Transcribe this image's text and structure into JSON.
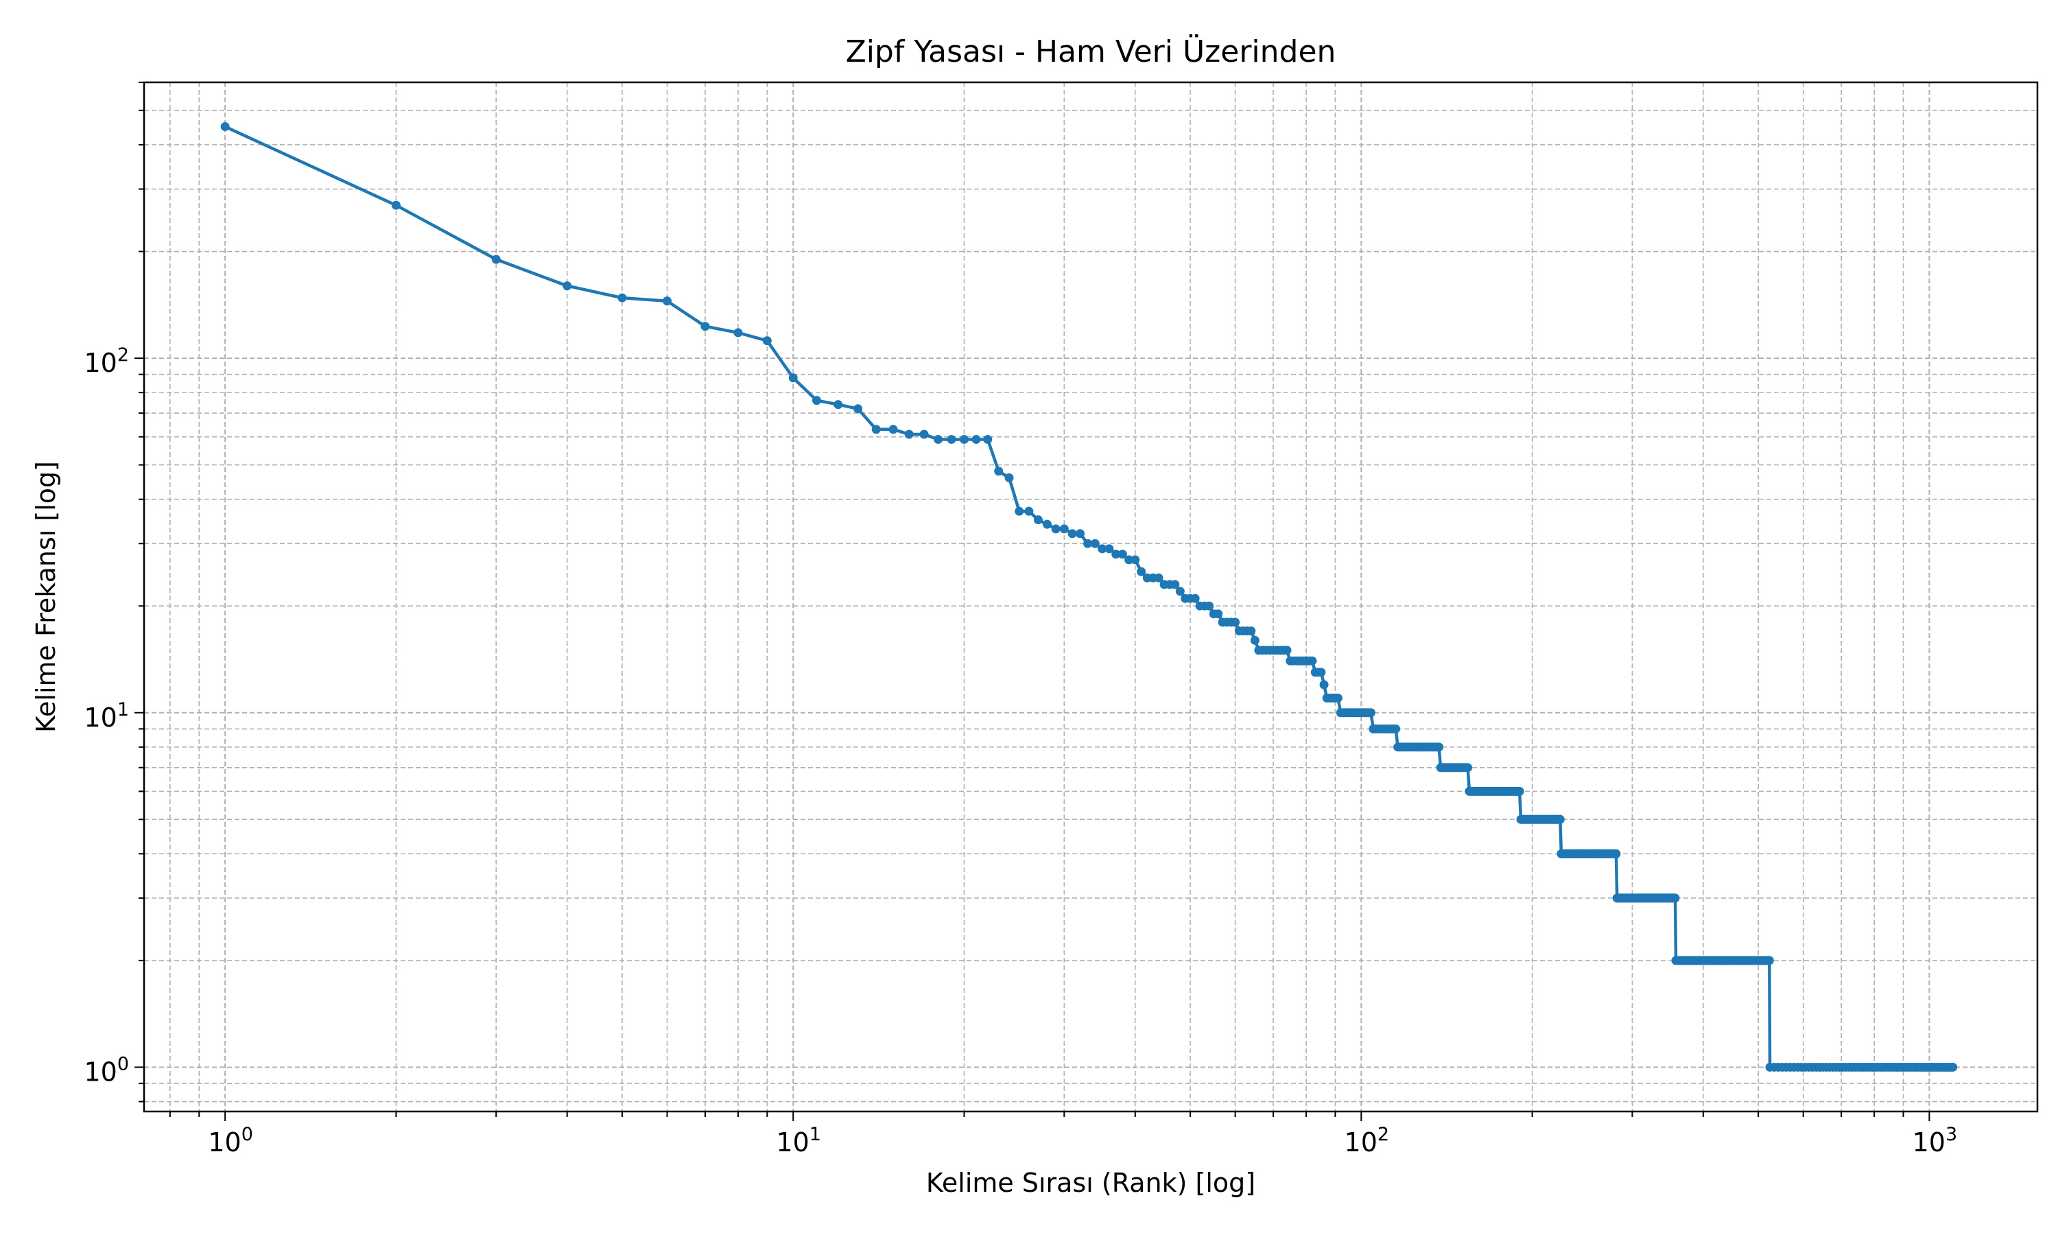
{
  "chart_data": {
    "type": "line",
    "title": "Zipf Yasası - Ham Veri Üzerinden",
    "xlabel": "Kelime Sırası (Rank) [log]",
    "ylabel": "Kelime Frekansı [log]",
    "xscale": "log",
    "yscale": "log",
    "xlim": [
      0.72,
      1550
    ],
    "ylim": [
      0.75,
      600
    ],
    "grid": "major and minor, dashed",
    "legend": "none",
    "marker": "circle",
    "line_color": "#1f77b4",
    "x_ticks": [
      {
        "base": "10",
        "exp": "0",
        "value": 1
      },
      {
        "base": "10",
        "exp": "1",
        "value": 10
      },
      {
        "base": "10",
        "exp": "2",
        "value": 100
      },
      {
        "base": "10",
        "exp": "3",
        "value": 1000
      }
    ],
    "y_ticks": [
      {
        "base": "10",
        "exp": "0",
        "value": 1
      },
      {
        "base": "10",
        "exp": "1",
        "value": 10
      },
      {
        "base": "10",
        "exp": "2",
        "value": 100
      }
    ],
    "series": [
      {
        "points": [
          [
            1,
            450
          ],
          [
            2,
            270
          ],
          [
            3,
            190
          ],
          [
            4,
            160
          ],
          [
            5,
            148
          ],
          [
            6,
            145
          ],
          [
            7,
            123
          ],
          [
            8,
            118
          ],
          [
            9,
            112
          ],
          [
            10,
            88
          ],
          [
            11,
            76
          ],
          [
            12,
            74
          ],
          [
            13,
            72
          ],
          [
            14,
            63
          ],
          [
            15,
            63
          ],
          [
            16,
            61
          ],
          [
            17,
            61
          ],
          [
            18,
            59
          ],
          [
            19,
            59
          ],
          [
            20,
            59
          ],
          [
            21,
            59
          ],
          [
            22,
            59
          ],
          [
            23,
            48
          ],
          [
            24,
            46
          ],
          [
            25,
            37
          ],
          [
            26,
            37
          ],
          [
            27,
            35
          ],
          [
            28,
            34
          ],
          [
            29,
            33
          ],
          [
            30,
            33
          ],
          [
            31,
            32
          ],
          [
            32,
            32
          ],
          [
            33,
            30
          ],
          [
            34,
            30
          ],
          [
            35,
            29
          ],
          [
            36,
            29
          ],
          [
            37,
            28
          ],
          [
            38,
            28
          ],
          [
            39,
            27
          ],
          [
            40,
            27
          ],
          [
            41,
            25
          ],
          [
            42,
            24
          ],
          [
            43,
            24
          ],
          [
            44,
            24
          ],
          [
            45,
            23
          ],
          [
            46,
            23
          ],
          [
            47,
            23
          ],
          [
            48,
            22
          ],
          [
            49,
            21
          ],
          [
            50,
            21
          ],
          [
            51,
            21
          ],
          [
            52,
            20
          ],
          [
            53,
            20
          ],
          [
            54,
            20
          ],
          [
            55,
            19
          ],
          [
            56,
            19
          ],
          [
            57,
            18
          ],
          [
            58,
            18
          ],
          [
            59,
            18
          ],
          [
            60,
            18
          ],
          [
            61,
            17
          ],
          [
            62,
            17
          ],
          [
            63,
            17
          ],
          [
            64,
            17
          ],
          [
            65,
            16
          ],
          [
            66,
            15
          ],
          [
            70,
            15
          ],
          [
            74,
            15
          ],
          [
            75,
            14
          ],
          [
            80,
            14
          ],
          [
            82,
            14
          ],
          [
            83,
            13
          ],
          [
            85,
            13
          ],
          [
            86,
            12
          ],
          [
            87,
            11
          ],
          [
            91,
            11
          ],
          [
            92,
            10
          ],
          [
            104,
            10
          ],
          [
            105,
            9
          ],
          [
            115,
            9
          ],
          [
            116,
            8
          ],
          [
            137,
            8
          ],
          [
            138,
            7
          ],
          [
            154,
            7
          ],
          [
            155,
            6
          ],
          [
            190,
            6
          ],
          [
            191,
            5
          ],
          [
            224,
            5
          ],
          [
            225,
            4
          ],
          [
            281,
            4
          ],
          [
            282,
            3
          ],
          [
            357,
            3
          ],
          [
            358,
            2
          ],
          [
            523,
            2
          ],
          [
            524,
            1
          ],
          [
            1100,
            1
          ]
        ]
      }
    ]
  }
}
